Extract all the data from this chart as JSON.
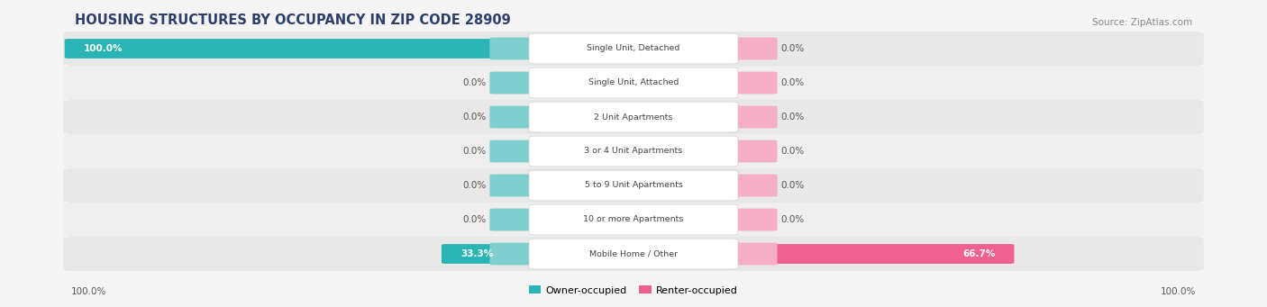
{
  "title": "HOUSING STRUCTURES BY OCCUPANCY IN ZIP CODE 28909",
  "source": "Source: ZipAtlas.com",
  "categories": [
    "Single Unit, Detached",
    "Single Unit, Attached",
    "2 Unit Apartments",
    "3 or 4 Unit Apartments",
    "5 to 9 Unit Apartments",
    "10 or more Apartments",
    "Mobile Home / Other"
  ],
  "owner_values": [
    100.0,
    0.0,
    0.0,
    0.0,
    0.0,
    0.0,
    33.3
  ],
  "renter_values": [
    0.0,
    0.0,
    0.0,
    0.0,
    0.0,
    0.0,
    66.7
  ],
  "owner_color": "#29b5b5",
  "renter_color": "#f06090",
  "owner_color_light": "#80cece",
  "renter_color_light": "#f5aec5",
  "row_bg": "#ececec",
  "label_color": "#444444",
  "title_color": "#2c3e6b",
  "source_color": "#888888",
  "fig_bg": "#f5f5f5",
  "value_text_color_inside": "#ffffff",
  "value_text_color_outside": "#555555",
  "legend_owner": "Owner-occupied",
  "legend_renter": "Renter-occupied",
  "axis_label": "100.0%"
}
